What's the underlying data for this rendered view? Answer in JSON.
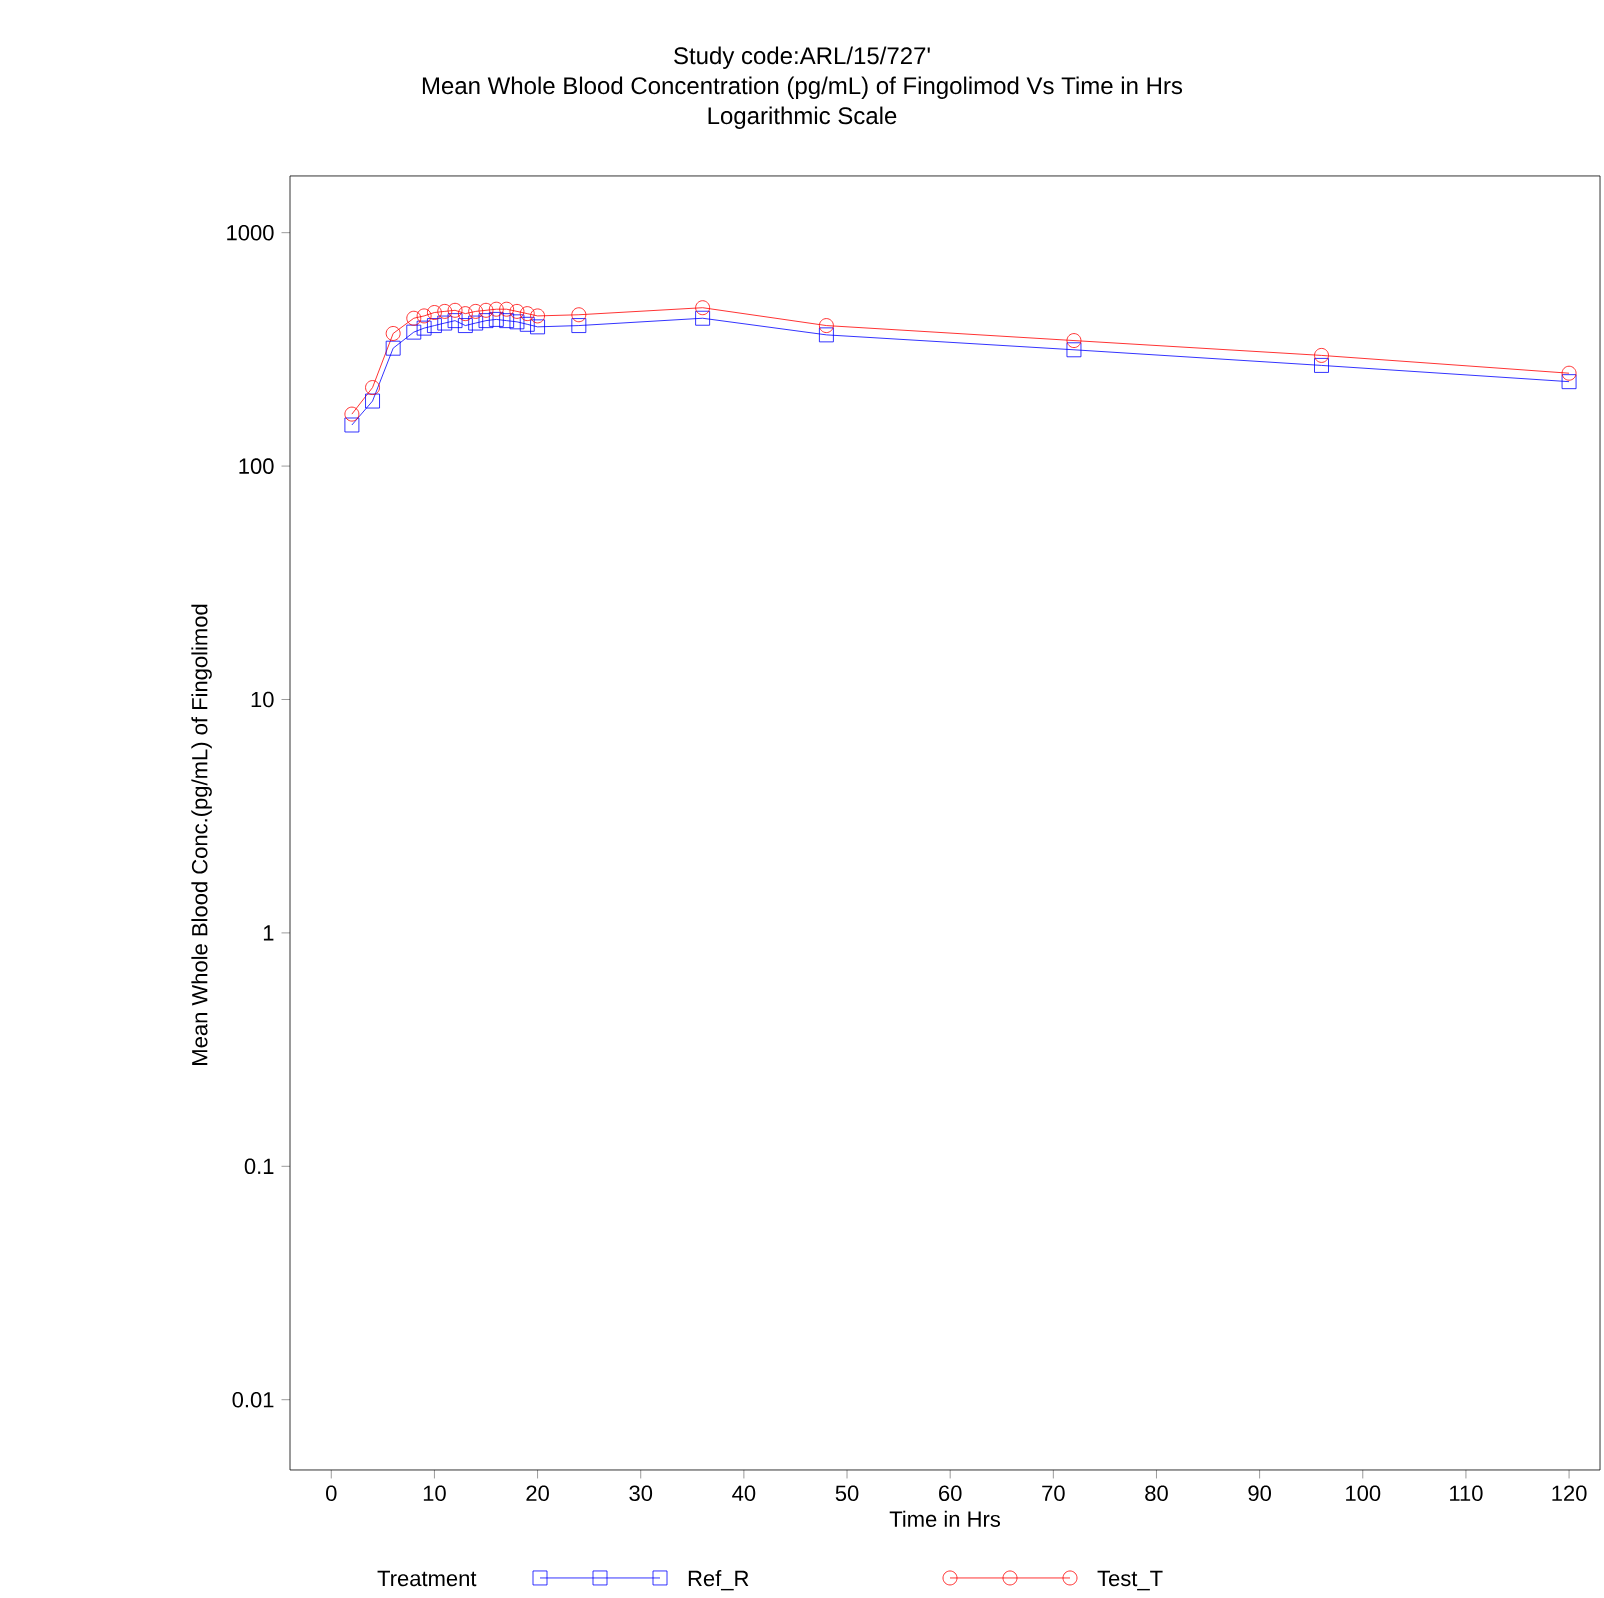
{
  "chart_data": {
    "type": "line",
    "title": "Mean Whole Blood Concentration (pg/mL) of Fingolimod Vs Time in Hrs",
    "subtitle": "Logarithmic Scale",
    "annotations": [
      "Study code:ARL/15/727'"
    ],
    "xlabel": "Time in Hrs",
    "ylabel": "Mean Whole Blood Conc.(pg/mL) of Fingolimod",
    "legend_title": "Treatment",
    "legend": "bottom",
    "log": "y",
    "grid": false,
    "line_style": "solid",
    "xlim": [
      -4,
      123
    ],
    "xticks": [
      0,
      10,
      20,
      30,
      40,
      50,
      60,
      70,
      80,
      90,
      100,
      110,
      120
    ],
    "ylim": [
      0.005,
      1750
    ],
    "yticks": [
      0.01,
      0.1,
      1,
      10,
      100,
      1000
    ],
    "x": [
      2,
      4,
      6,
      8,
      9,
      10,
      11,
      12,
      13,
      14,
      15,
      16,
      17,
      18,
      19,
      20,
      24,
      36,
      48,
      72,
      96,
      120
    ],
    "series": [
      {
        "name": "Ref_R",
        "color": "#0000ff",
        "marker": "square",
        "values": [
          150,
          190,
          320,
          375,
          390,
          400,
          410,
          420,
          400,
          410,
          420,
          425,
          420,
          415,
          405,
          395,
          400,
          430,
          365,
          315,
          270,
          230
        ]
      },
      {
        "name": "Test_T",
        "color": "#ff0000",
        "marker": "circle",
        "values": [
          167,
          217,
          370,
          430,
          440,
          455,
          460,
          465,
          450,
          460,
          465,
          470,
          470,
          460,
          450,
          440,
          445,
          477,
          400,
          345,
          298,
          250
        ]
      }
    ]
  }
}
